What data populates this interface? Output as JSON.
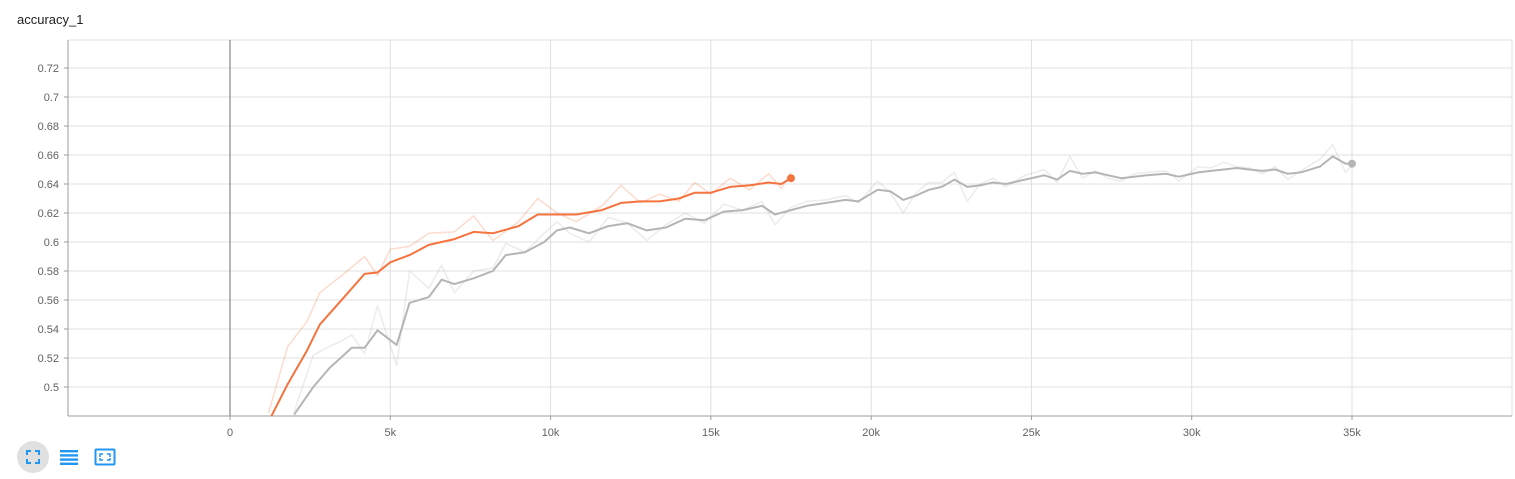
{
  "card": {
    "title": "accuracy_1"
  },
  "toolbar": {
    "buttons": [
      {
        "name": "fit-domain",
        "icon": "fullscreen-icon"
      },
      {
        "name": "toggle-log-scale",
        "icon": "list-icon"
      },
      {
        "name": "expand-chart",
        "icon": "crop-free-icon"
      }
    ]
  },
  "colors": {
    "accent_orange": "#f4733f",
    "series_gray": "#b5b5b5",
    "axis": "#9e9e9e",
    "grid": "#e0e0e0",
    "button_blue": "#2196f3"
  },
  "chart_data": {
    "type": "line",
    "title": "accuracy_1",
    "xlabel": "",
    "ylabel": "",
    "xlim": [
      -5000,
      40000
    ],
    "ylim": [
      0.48,
      0.74
    ],
    "grid": true,
    "x_ticks": [
      0,
      5000,
      10000,
      15000,
      20000,
      25000,
      30000,
      35000
    ],
    "x_tick_labels": [
      "0",
      "5k",
      "10k",
      "15k",
      "20k",
      "25k",
      "30k",
      "35k"
    ],
    "y_ticks": [
      0.5,
      0.52,
      0.54,
      0.56,
      0.58,
      0.6,
      0.62,
      0.64,
      0.66,
      0.68,
      0.7,
      0.72
    ],
    "y_tick_labels": [
      "0.5",
      "0.52",
      "0.54",
      "0.56",
      "0.58",
      "0.6",
      "0.62",
      "0.64",
      "0.66",
      "0.68",
      "0.7",
      "0.72"
    ],
    "series": [
      {
        "color": "#f4733f",
        "x": [
          1200,
          1800,
          2400,
          2800,
          3600,
          4200,
          4600,
          5000,
          5600,
          6200,
          7000,
          7600,
          8200,
          9000,
          9600,
          10200,
          10800,
          11600,
          12200,
          12800,
          13400,
          14000,
          14500,
          15000,
          15600,
          16200,
          16800,
          17200,
          17500
        ],
        "smoothed": [
          0.476,
          0.502,
          0.525,
          0.543,
          0.563,
          0.578,
          0.579,
          0.586,
          0.591,
          0.598,
          0.602,
          0.607,
          0.606,
          0.611,
          0.619,
          0.619,
          0.619,
          0.622,
          0.627,
          0.628,
          0.628,
          0.63,
          0.634,
          0.634,
          0.638,
          0.639,
          0.641,
          0.64,
          0.644
        ],
        "raw": [
          0.482,
          0.528,
          0.545,
          0.565,
          0.579,
          0.59,
          0.577,
          0.595,
          0.597,
          0.606,
          0.607,
          0.618,
          0.601,
          0.614,
          0.63,
          0.62,
          0.614,
          0.625,
          0.639,
          0.627,
          0.633,
          0.628,
          0.641,
          0.633,
          0.644,
          0.636,
          0.647,
          0.637,
          0.648
        ]
      },
      {
        "color": "#b5b5b5",
        "x": [
          2000,
          2600,
          3100,
          3500,
          3800,
          4200,
          4600,
          5200,
          5600,
          6200,
          6600,
          7000,
          7600,
          8200,
          8600,
          9200,
          9800,
          10200,
          10600,
          11200,
          11800,
          12400,
          13000,
          13600,
          14200,
          14800,
          15400,
          16000,
          16600,
          17000,
          17500,
          18000,
          18600,
          19200,
          19600,
          20200,
          20600,
          21000,
          21400,
          21800,
          22200,
          22600,
          23000,
          23400,
          23800,
          24200,
          24800,
          25400,
          25800,
          26200,
          26600,
          27000,
          27400,
          27800,
          28200,
          28600,
          29200,
          29600,
          30200,
          30600,
          31000,
          31400,
          31800,
          32200,
          32600,
          33000,
          33400,
          34000,
          34400,
          34800,
          35000
        ],
        "smoothed": [
          0.481,
          0.5,
          0.513,
          0.521,
          0.527,
          0.527,
          0.539,
          0.529,
          0.558,
          0.562,
          0.574,
          0.571,
          0.575,
          0.58,
          0.591,
          0.593,
          0.6,
          0.608,
          0.61,
          0.606,
          0.611,
          0.613,
          0.608,
          0.61,
          0.616,
          0.615,
          0.621,
          0.622,
          0.625,
          0.619,
          0.622,
          0.625,
          0.627,
          0.629,
          0.628,
          0.636,
          0.635,
          0.629,
          0.632,
          0.636,
          0.638,
          0.643,
          0.638,
          0.639,
          0.641,
          0.64,
          0.643,
          0.646,
          0.643,
          0.649,
          0.647,
          0.648,
          0.646,
          0.644,
          0.645,
          0.646,
          0.647,
          0.645,
          0.648,
          0.649,
          0.65,
          0.651,
          0.65,
          0.649,
          0.65,
          0.647,
          0.648,
          0.652,
          0.659,
          0.654,
          0.654
        ],
        "raw": [
          0.483,
          0.522,
          0.528,
          0.532,
          0.536,
          0.523,
          0.556,
          0.515,
          0.58,
          0.568,
          0.584,
          0.565,
          0.58,
          0.582,
          0.599,
          0.593,
          0.606,
          0.614,
          0.606,
          0.6,
          0.617,
          0.613,
          0.601,
          0.612,
          0.62,
          0.613,
          0.626,
          0.622,
          0.628,
          0.612,
          0.624,
          0.628,
          0.629,
          0.632,
          0.627,
          0.642,
          0.634,
          0.62,
          0.634,
          0.641,
          0.641,
          0.648,
          0.628,
          0.64,
          0.644,
          0.638,
          0.646,
          0.65,
          0.641,
          0.659,
          0.644,
          0.649,
          0.644,
          0.642,
          0.647,
          0.648,
          0.649,
          0.642,
          0.652,
          0.651,
          0.655,
          0.652,
          0.651,
          0.647,
          0.652,
          0.643,
          0.649,
          0.657,
          0.667,
          0.648,
          0.653
        ]
      }
    ]
  }
}
